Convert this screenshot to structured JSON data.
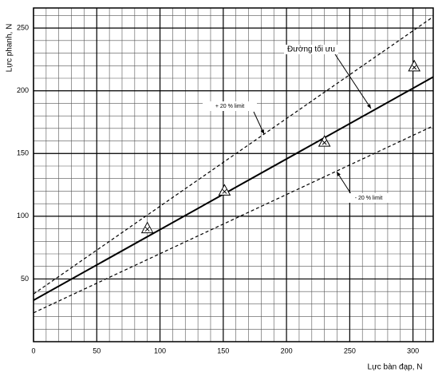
{
  "chart_data": {
    "type": "line",
    "x_label": "Lực bàn đạp, N",
    "y_label": "Lực phanh, N",
    "x": [
      0,
      316
    ],
    "series": [
      {
        "values": [
          33,
          211
        ],
        "color": "#000000",
        "dash": false
      },
      {
        "values": [
          38,
          259
        ],
        "color": "#000000",
        "dash": true
      },
      {
        "values": [
          23,
          172
        ],
        "color": "#000000",
        "dash": true
      }
    ],
    "points": {
      "x": [
        90,
        151,
        230,
        301
      ],
      "y": [
        90,
        120,
        159,
        219
      ],
      "color": "#000000"
    },
    "annotations": [
      "Đường tối ưu",
      "+ 20 % limit",
      "- 20 % limit"
    ],
    "xlim": [
      0,
      316
    ],
    "ylim": [
      0,
      266
    ],
    "xticks": [
      0,
      50,
      100,
      150,
      200,
      250,
      300
    ],
    "yticks": [
      50,
      100,
      150,
      200,
      250
    ],
    "grid": true,
    "grid_step": 10
  }
}
